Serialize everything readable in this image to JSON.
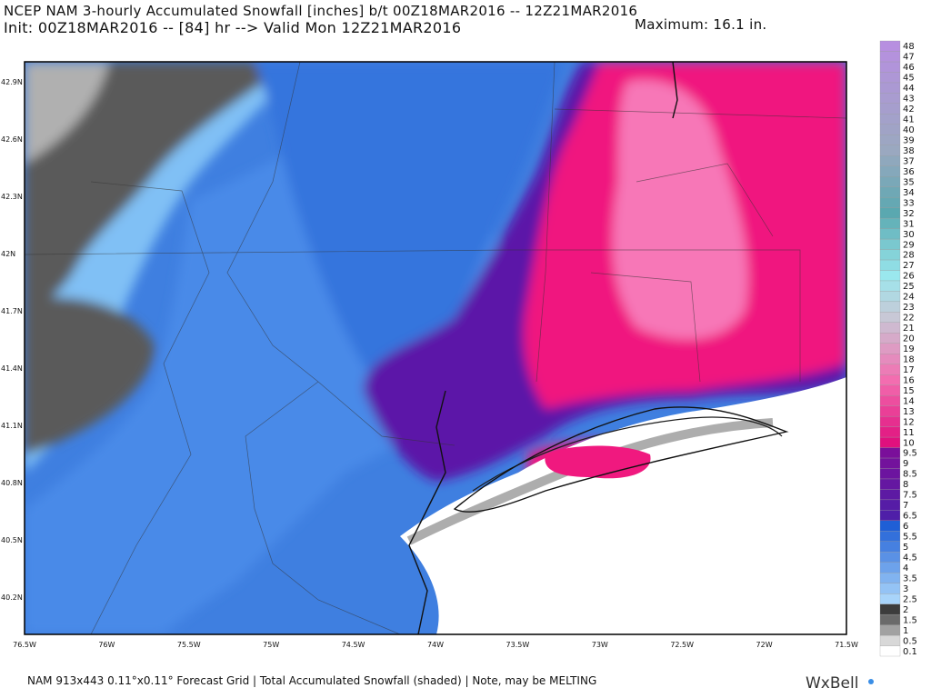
{
  "header": {
    "title": "NCEP NAM 3-hourly Accumulated Snowfall [inches] b/t 00Z18MAR2016 -- 12Z21MAR2016",
    "init": "Init: 00Z18MAR2016 -- [84] hr --> Valid Mon 12Z21MAR2016",
    "maximum": "Maximum: 16.1 in."
  },
  "map": {
    "lat_labels": [
      "42.9N",
      "42.6N",
      "42.3N",
      "42N",
      "41.7N",
      "41.4N",
      "41.1N",
      "40.8N",
      "40.5N",
      "40.2N"
    ],
    "lon_labels": [
      "76.5W",
      "76W",
      "75.5W",
      "75W",
      "74.5W",
      "74W",
      "73.5W",
      "73W",
      "72.5W",
      "72W",
      "71.5W"
    ]
  },
  "colorbar": {
    "labels": [
      "0.1",
      "0.5",
      "1",
      "1.5",
      "2",
      "2.5",
      "3",
      "3.5",
      "4",
      "4.5",
      "5",
      "5.5",
      "6",
      "6.5",
      "7",
      "7.5",
      "8",
      "8.5",
      "9",
      "9.5",
      "10",
      "11",
      "12",
      "13",
      "14",
      "15",
      "16",
      "17",
      "18",
      "19",
      "20",
      "21",
      "22",
      "23",
      "24",
      "25",
      "26",
      "27",
      "28",
      "29",
      "30",
      "31",
      "32",
      "33",
      "34",
      "35",
      "36",
      "37",
      "38",
      "39",
      "40",
      "41",
      "42",
      "43",
      "44",
      "45",
      "46",
      "47",
      "48"
    ]
  },
  "footer": {
    "note": "NAM 913x443 0.11°x0.11° Forecast Grid | Total Accumulated Snowfall (shaded) | Note, may be MELTING",
    "logo": "WxBell"
  }
}
